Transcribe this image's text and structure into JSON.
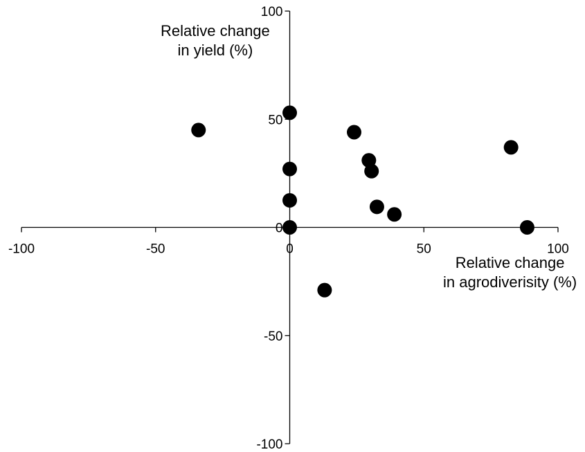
{
  "chart_data": {
    "type": "scatter",
    "xlabel_lines": [
      "Relative change",
      "in agrodiverisity (%)"
    ],
    "ylabel_lines": [
      "Relative change",
      "in yield (%)"
    ],
    "xlim": [
      -100,
      100
    ],
    "ylim": [
      -100,
      100
    ],
    "x_ticks": [
      -100,
      -50,
      0,
      50,
      100
    ],
    "y_ticks": [
      -100,
      -50,
      0,
      50,
      100
    ],
    "x_tick_labels": [
      "-100",
      "-50",
      "0",
      "50",
      "100"
    ],
    "y_tick_labels": [
      "-100",
      "-50",
      "0",
      "50",
      "100"
    ],
    "grid": false,
    "legend": "none",
    "marker_color": "#000000",
    "points": [
      {
        "x": -34,
        "y": 45
      },
      {
        "x": 0,
        "y": 53
      },
      {
        "x": 0,
        "y": 27
      },
      {
        "x": 0,
        "y": 12.5
      },
      {
        "x": 0,
        "y": 0
      },
      {
        "x": 24,
        "y": 44
      },
      {
        "x": 29.5,
        "y": 31
      },
      {
        "x": 30.5,
        "y": 26
      },
      {
        "x": 32.5,
        "y": 9.5
      },
      {
        "x": 39,
        "y": 6
      },
      {
        "x": 82.5,
        "y": 37
      },
      {
        "x": 88.5,
        "y": 0
      },
      {
        "x": 13,
        "y": -29
      }
    ]
  }
}
